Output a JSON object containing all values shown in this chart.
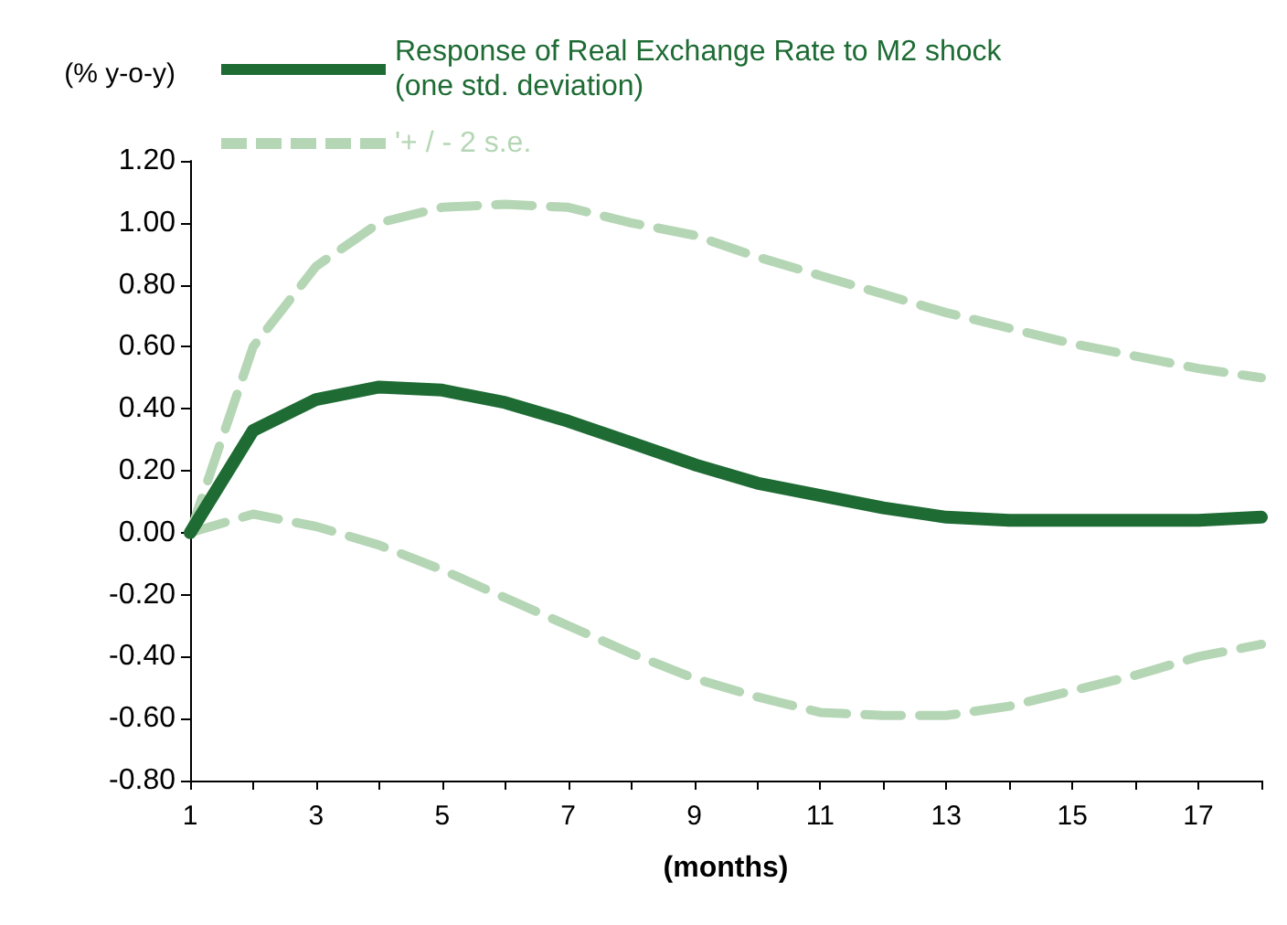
{
  "chart_data": {
    "type": "line",
    "ylabel": "(% y-o-y)",
    "xlabel": "(months)",
    "x": [
      1,
      2,
      3,
      4,
      5,
      6,
      7,
      8,
      9,
      10,
      11,
      12,
      13,
      14,
      15,
      16,
      17,
      18
    ],
    "xlim": [
      1,
      18
    ],
    "xticks": [
      1,
      {
        "value": 2,
        "label": null
      },
      3,
      {
        "value": 4,
        "label": null
      },
      5,
      {
        "value": 6,
        "label": null
      },
      7,
      {
        "value": 8,
        "label": null
      },
      9,
      {
        "value": 10,
        "label": null
      },
      11,
      {
        "value": 12,
        "label": null
      },
      13,
      {
        "value": 14,
        "label": null
      },
      15,
      {
        "value": 16,
        "label": null
      },
      17,
      {
        "value": 18,
        "label": null
      }
    ],
    "ylim": [
      -0.8,
      1.2
    ],
    "yticks": [
      {
        "value": -0.8,
        "label": "-0.80"
      },
      {
        "value": -0.6,
        "label": "-0.60"
      },
      {
        "value": -0.4,
        "label": "-0.40"
      },
      {
        "value": -0.2,
        "label": "-0.20"
      },
      {
        "value": 0,
        "label": "0.00"
      },
      {
        "value": 0.2,
        "label": "0.20"
      },
      {
        "value": 0.4,
        "label": "0.40"
      },
      {
        "value": 0.6,
        "label": "0.60"
      },
      {
        "value": 0.8,
        "label": "0.80"
      },
      {
        "value": 1.0,
        "label": "1.00"
      },
      {
        "value": 1.2,
        "label": "1.20"
      }
    ],
    "grid": false,
    "legend": "top left",
    "marker": "none",
    "series": [
      {
        "name": "Response of Real Exchange Rate to M2 shock\n(one std. deviation)",
        "color": "#1e6b34",
        "line_style": "solid",
        "values": [
          0,
          0.33,
          0.43,
          0.47,
          0.46,
          0.42,
          0.36,
          0.29,
          0.22,
          0.16,
          0.12,
          0.08,
          0.05,
          0.04,
          0.04,
          0.04,
          0.04,
          0.05
        ]
      },
      {
        "name": "'+ / - 2 s.e.",
        "color": "#b5d6b5",
        "line_style": "dashed",
        "values": [
          0,
          0.6,
          0.86,
          1.0,
          1.05,
          1.06,
          1.05,
          1.0,
          0.96,
          0.89,
          0.83,
          0.77,
          0.71,
          0.66,
          0.61,
          0.57,
          0.53,
          0.5
        ]
      },
      {
        "color": "#b5d6b5",
        "line_style": "dashed",
        "values": [
          0,
          0.06,
          0.02,
          -0.04,
          -0.12,
          -0.21,
          -0.3,
          -0.39,
          -0.47,
          -0.53,
          -0.58,
          -0.59,
          -0.59,
          -0.56,
          -0.51,
          -0.46,
          -0.4,
          -0.36
        ]
      }
    ]
  }
}
